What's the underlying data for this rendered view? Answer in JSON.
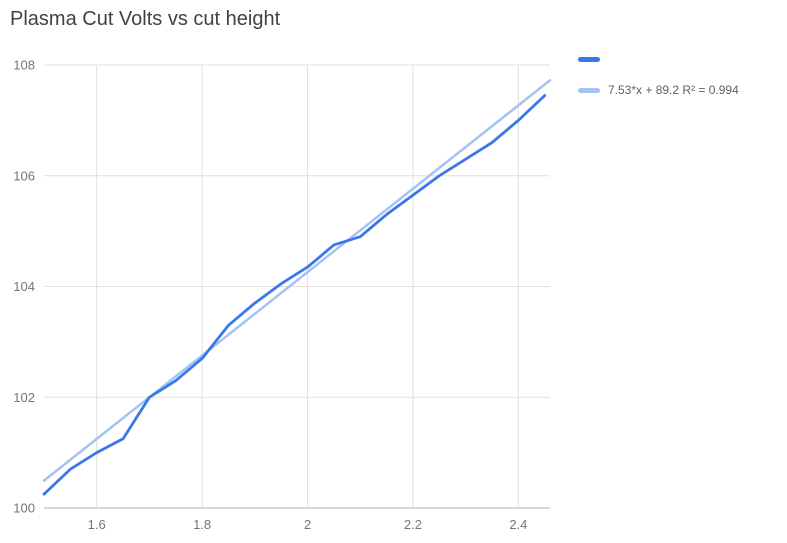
{
  "title": "Plasma Cut Volts vs cut height",
  "legend": {
    "series_label": "",
    "trendline_label": "7.53*x + 89.2 R² = 0.994"
  },
  "chart_data": {
    "type": "line",
    "title": "Plasma Cut Volts vs cut height",
    "xlabel": "",
    "ylabel": "",
    "xlim": [
      1.5,
      2.46
    ],
    "ylim": [
      100,
      108
    ],
    "x_ticks": [
      1.6,
      1.8,
      2,
      2.2,
      2.4
    ],
    "x_tick_labels": [
      "1.6",
      "1.8",
      "2",
      "2.2",
      "2.4"
    ],
    "y_ticks": [
      100,
      102,
      104,
      106,
      108
    ],
    "y_tick_labels": [
      "100",
      "102",
      "104",
      "106",
      "108"
    ],
    "grid": true,
    "legend_position": "right",
    "x": [
      1.5,
      1.55,
      1.6,
      1.65,
      1.7,
      1.75,
      1.8,
      1.85,
      1.9,
      1.95,
      2.0,
      2.05,
      2.1,
      2.15,
      2.2,
      2.25,
      2.3,
      2.35,
      2.4,
      2.45
    ],
    "series": [
      {
        "name": "",
        "color": "#3b78e7",
        "values": [
          100.25,
          100.7,
          101.0,
          101.25,
          102.0,
          102.3,
          102.7,
          103.3,
          103.7,
          104.05,
          104.35,
          104.75,
          104.9,
          105.3,
          105.65,
          106.0,
          106.3,
          106.6,
          107.0,
          107.45
        ]
      }
    ],
    "trendline": {
      "label": "7.53*x + 89.2 R² = 0.994",
      "equation": "7.53*x + 89.2",
      "r_squared": 0.994,
      "slope": 7.53,
      "intercept": 89.2,
      "color": "#a4c2f4"
    },
    "colors": {
      "grid": "#e0e0e0",
      "axis": "#b0b0b0",
      "tick_label": "#757575",
      "title": "#424242",
      "legend_text": "#616161"
    }
  }
}
